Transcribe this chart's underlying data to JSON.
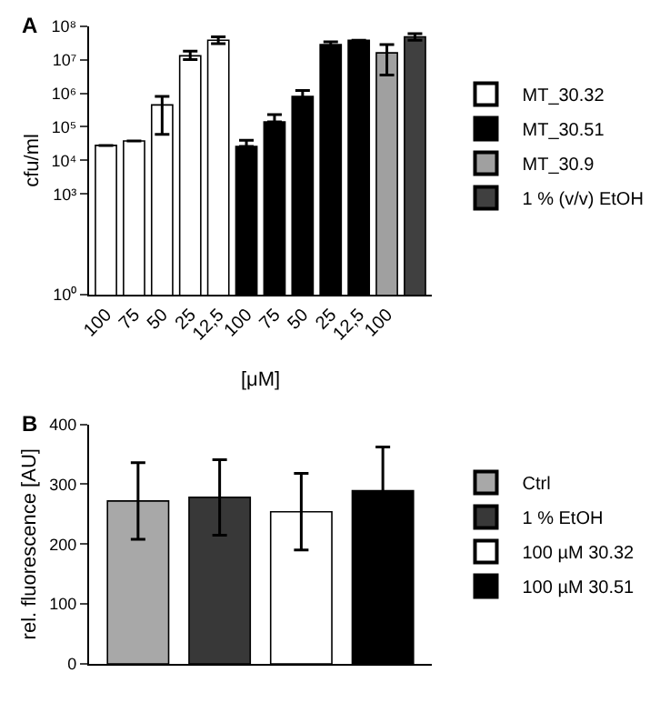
{
  "chart_data": [
    {
      "type": "bar",
      "title": "A",
      "xlabel": "[μM]",
      "ylabel": "cfu/ml",
      "log": "y",
      "legend": "right",
      "categories": [
        "100",
        "75",
        "50",
        "25",
        "12,5",
        "100",
        "75",
        "50",
        "25",
        "12,5",
        "100",
        null
      ],
      "ylim": [
        1,
        100000000
      ],
      "yticks": [
        {
          "value": 1,
          "label": "10⁰"
        },
        {
          "value": 1000,
          "label": "10³"
        },
        {
          "value": 10000,
          "label": "10⁴"
        },
        {
          "value": 100000,
          "label": "10⁵"
        },
        {
          "value": 1000000,
          "label": "10⁶"
        },
        {
          "value": 10000000,
          "label": "10⁷"
        },
        {
          "value": 100000000,
          "label": "10⁸"
        }
      ],
      "series": [
        {
          "name": "MT_30.32",
          "color": "#ffffff",
          "values": [
            28000,
            38000,
            450000,
            13000000,
            38000000,
            null,
            null,
            null,
            null,
            null,
            null,
            null
          ],
          "errors": [
            null,
            null,
            [
              60000,
              800000
            ],
            [
              10000000,
              18000000
            ],
            [
              30000000,
              48000000
            ],
            null,
            null,
            null,
            null,
            null,
            null,
            null
          ]
        },
        {
          "name": "MT_30.51",
          "color": "#000000",
          "values": [
            null,
            null,
            null,
            null,
            null,
            26000,
            140000,
            800000,
            28000000,
            38000000,
            null,
            null
          ],
          "errors": [
            null,
            null,
            null,
            null,
            null,
            [
              26000,
              40000
            ],
            [
              140000,
              230000
            ],
            [
              600000,
              1200000
            ],
            [
              22000000,
              34000000
            ],
            null,
            null,
            null
          ]
        },
        {
          "name": "MT_30.9",
          "color": "#a0a0a0",
          "values": [
            null,
            null,
            null,
            null,
            null,
            null,
            null,
            null,
            null,
            null,
            16000000,
            null
          ],
          "errors": [
            null,
            null,
            null,
            null,
            null,
            null,
            null,
            null,
            null,
            null,
            [
              3500000,
              28000000
            ],
            null
          ]
        },
        {
          "name": "1 % (v/v) EtOH",
          "color": "#404040",
          "values": [
            null,
            null,
            null,
            null,
            null,
            null,
            null,
            null,
            null,
            null,
            null,
            48000000
          ],
          "errors": [
            null,
            null,
            null,
            null,
            null,
            null,
            null,
            null,
            null,
            null,
            null,
            [
              38000000,
              60000000
            ]
          ]
        }
      ]
    },
    {
      "type": "bar",
      "title": "B",
      "ylabel": "rel. fluorescence [AU]",
      "legend": "right",
      "categories": [
        null,
        null,
        null,
        null
      ],
      "ylim": [
        0,
        400
      ],
      "yticks": [
        0,
        100,
        200,
        300,
        400
      ],
      "series": [
        {
          "name": "Ctrl",
          "color": "#a8a8a8",
          "values": [
            272,
            null,
            null,
            null
          ],
          "errors": [
            64,
            null,
            null,
            null
          ]
        },
        {
          "name": "1 % EtOH",
          "color": "#383838",
          "values": [
            null,
            278,
            null,
            null
          ],
          "errors": [
            null,
            63,
            null,
            null
          ]
        },
        {
          "name": "100 µM 30.32",
          "color": "#ffffff",
          "values": [
            null,
            null,
            254,
            null
          ],
          "errors": [
            null,
            null,
            64,
            null
          ]
        },
        {
          "name": "100 µM 30.51",
          "color": "#000000",
          "values": [
            null,
            null,
            null,
            289
          ],
          "errors": [
            null,
            null,
            null,
            73
          ]
        }
      ]
    }
  ]
}
